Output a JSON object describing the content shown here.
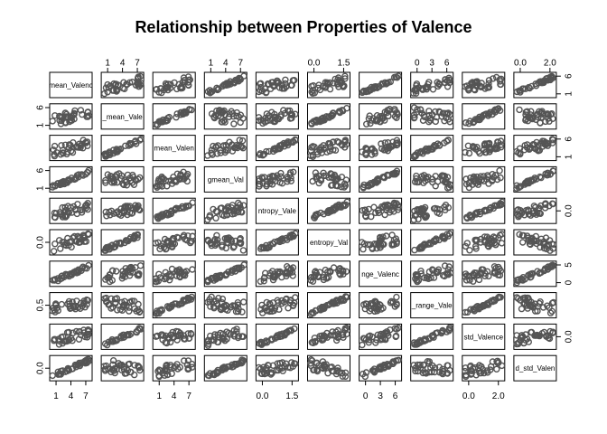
{
  "chart_data": {
    "type": "scatter",
    "title": "Relationship between Properties of Valence",
    "variables": [
      "mean_Valence",
      "gmean_Valence",
      "hmean_Valence",
      "nmgmean_Valence",
      "entropy_Valence",
      "nentropy_Valence",
      "range_Valence",
      "n_range_Valence",
      "std_Valence",
      "nd_std_Valence"
    ],
    "diagonal_labels": [
      "mean_Valenc",
      "_mean_Vale",
      "mean_Valen",
      "gmean_Val",
      "ntropy_Vale",
      "entropy_Val",
      "nge_Valenc",
      "_range_Vale",
      "std_Valence",
      "d_std_Valen"
    ],
    "axis_ticks": {
      "top": [
        {
          "panel": 2,
          "labels": [
            "1",
            "4",
            "7"
          ]
        },
        {
          "panel": 4,
          "labels": [
            "1",
            "4",
            "7"
          ]
        },
        {
          "panel": 6,
          "labels": [
            "0.0",
            "1.5"
          ]
        },
        {
          "panel": 8,
          "labels": [
            "0",
            "3",
            "6"
          ]
        },
        {
          "panel": 10,
          "labels": [
            "0.0",
            "2.0"
          ]
        }
      ],
      "bottom": [
        {
          "panel": 1,
          "labels": [
            "1",
            "4",
            "7"
          ]
        },
        {
          "panel": 3,
          "labels": [
            "1",
            "4",
            "7"
          ]
        },
        {
          "panel": 5,
          "labels": [
            "0.0",
            "1.5"
          ]
        },
        {
          "panel": 7,
          "labels": [
            "0",
            "3",
            "6"
          ]
        },
        {
          "panel": 9,
          "labels": [
            "0.0",
            "2.0"
          ]
        }
      ],
      "left": [
        {
          "panel": 2,
          "labels": [
            "1",
            "6"
          ]
        },
        {
          "panel": 4,
          "labels": [
            "1",
            "6"
          ]
        },
        {
          "panel": 6,
          "labels": [
            "0.0"
          ]
        },
        {
          "panel": 8,
          "labels": [
            "0.5"
          ]
        },
        {
          "panel": 10,
          "labels": [
            "0.0"
          ]
        }
      ],
      "right": [
        {
          "panel": 1,
          "labels": [
            "1",
            "6"
          ]
        },
        {
          "panel": 3,
          "labels": [
            "1",
            "6"
          ]
        },
        {
          "panel": 5,
          "labels": [
            "0.0"
          ]
        },
        {
          "panel": 7,
          "labels": [
            "0",
            "5"
          ]
        },
        {
          "panel": 9,
          "labels": [
            "0.0"
          ]
        }
      ]
    },
    "point_color": "#555555",
    "grid": false,
    "legend": "none"
  }
}
